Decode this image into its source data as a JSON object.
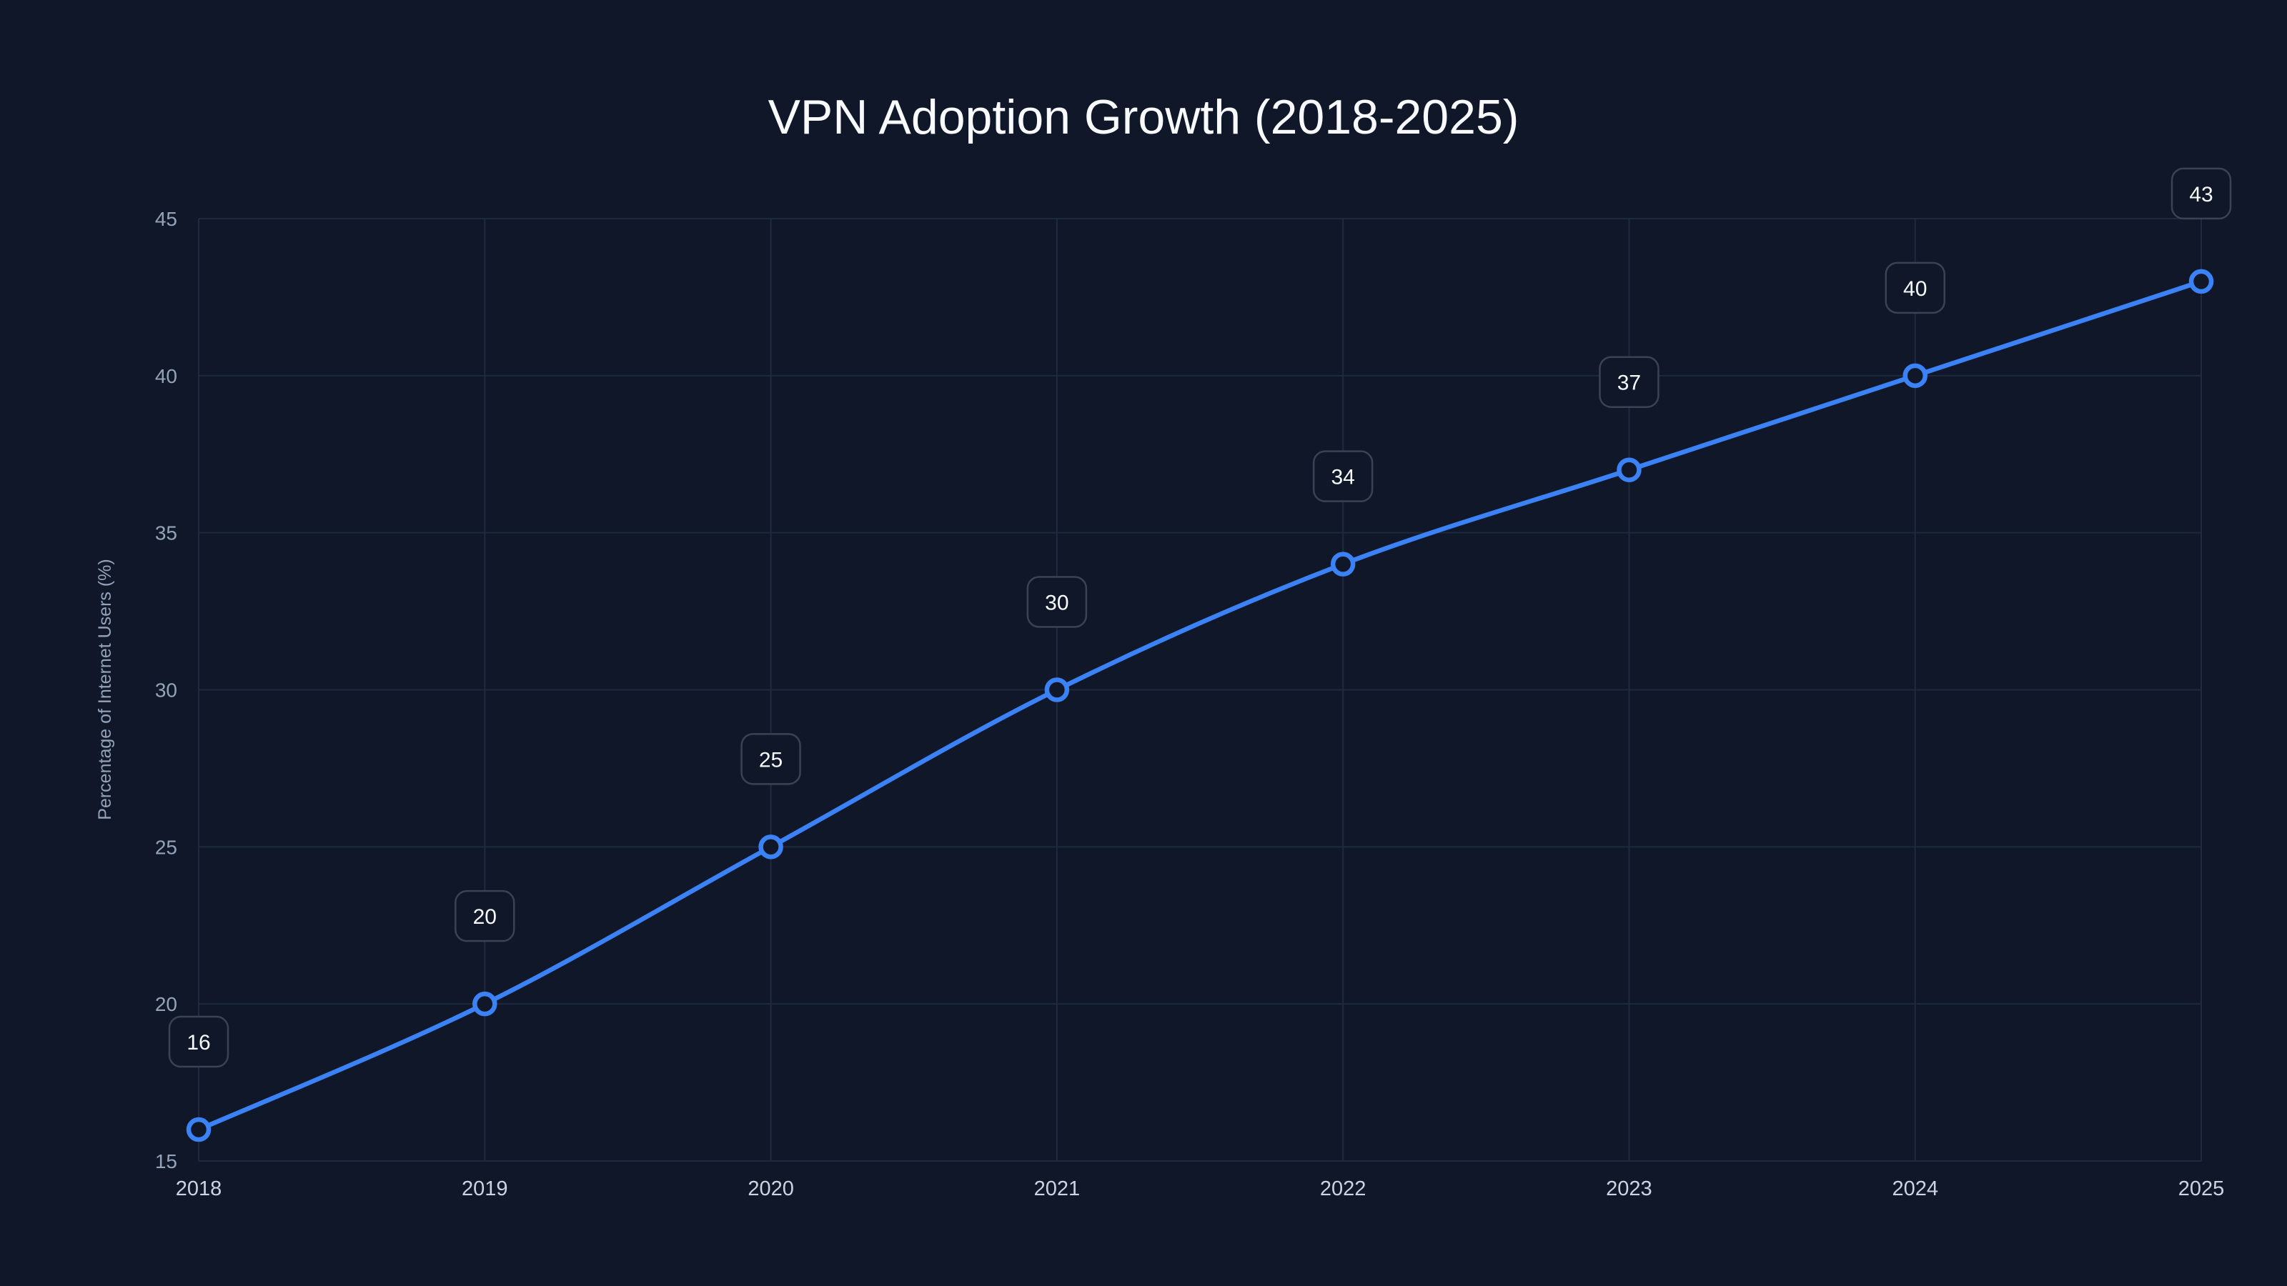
{
  "chart_data": {
    "type": "line",
    "title": "VPN Adoption Growth (2018-2025)",
    "xlabel": "",
    "ylabel": "Percentage of Internet Users (%)",
    "categories": [
      "2018",
      "2019",
      "2020",
      "2021",
      "2022",
      "2023",
      "2024",
      "2025"
    ],
    "values": [
      16,
      20,
      25,
      30,
      34,
      37,
      40,
      43
    ],
    "data_labels": [
      "16",
      "20",
      "25",
      "30",
      "34",
      "37",
      "40",
      "43"
    ],
    "ylim": [
      15,
      45
    ],
    "yticks": [
      "15",
      "20",
      "25",
      "30",
      "35",
      "40",
      "45"
    ],
    "grid": true,
    "smooth": true,
    "markers": "hollow-circle",
    "colors": {
      "line": "#3b82f6",
      "background": "#0f1729",
      "grid": "#1f2a3d"
    }
  }
}
